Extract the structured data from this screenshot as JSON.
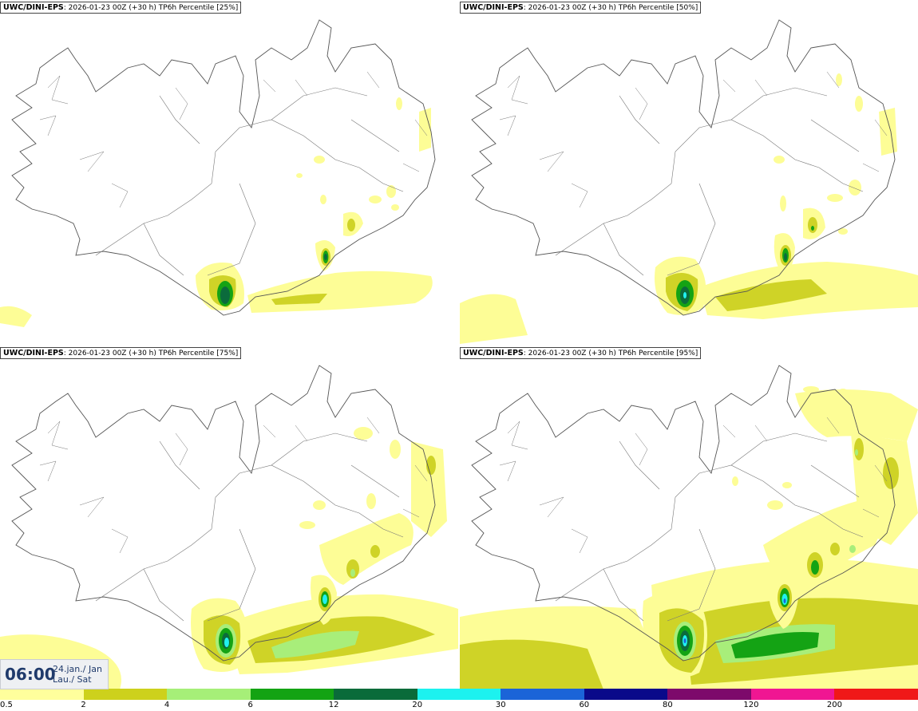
{
  "panels": [
    {
      "model": "UWC/DINI-EPS",
      "run_info": ": 2026-01-23 00Z (+30 h)",
      "product": "TP6h Percentile [25%]"
    },
    {
      "model": "UWC/DINI-EPS",
      "run_info": ": 2026-01-23 00Z (+30 h)",
      "product": "TP6h Percentile [50%]"
    },
    {
      "model": "UWC/DINI-EPS",
      "run_info": ": 2026-01-23 00Z (+30 h)",
      "product": "TP6h Percentile [75%]"
    },
    {
      "model": "UWC/DINI-EPS",
      "run_info": ": 2026-01-23 00Z (+30 h)",
      "product": "TP6h Percentile [95%]"
    }
  ],
  "valid_time": {
    "time": "06:00",
    "date_line1": "24.jan./ Jan",
    "date_line2": "Lau./ Sat"
  },
  "legend": {
    "colors": [
      "#ffff9c",
      "#cdd11c",
      "#a6ef78",
      "#13a313",
      "#0a6b3a",
      "#1cf2ef",
      "#1b64d8",
      "#0a0a8a",
      "#7d0a6b",
      "#f01692",
      "#f01818"
    ],
    "ticks": [
      "0.5",
      "2",
      "4",
      "6",
      "12",
      "20",
      "30",
      "60",
      "80",
      "120",
      "200"
    ]
  },
  "colors": {
    "pale_yellow": "#fdfd96",
    "olive": "#cfd327",
    "light_green": "#a8ee7a",
    "green": "#14a314",
    "dark_green": "#0b6b3c",
    "cyan": "#21f0f0",
    "blue": "#1b64d8"
  }
}
